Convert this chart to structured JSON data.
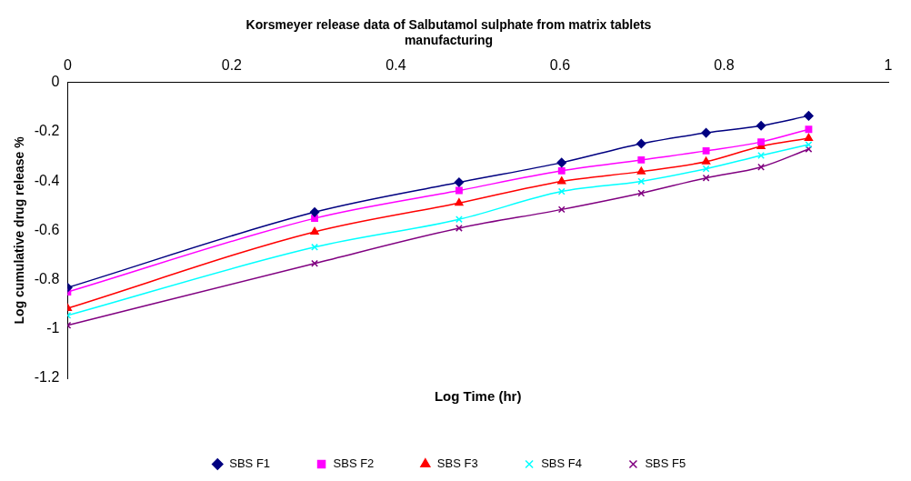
{
  "chart_data": {
    "type": "line",
    "title": [
      "Korsmeyer release data of Salbutamol sulphate from matrix tablets",
      "manufacturing"
    ],
    "xlabel": "Log Time (hr)",
    "ylabel": "Log cumulative drug release %",
    "x": [
      0,
      0.301,
      0.477,
      0.602,
      0.699,
      0.778,
      0.845,
      0.903
    ],
    "xlim": [
      0,
      1
    ],
    "xticks": [
      0,
      0.2,
      0.4,
      0.6,
      0.8,
      1
    ],
    "ylim": [
      -1.2,
      0
    ],
    "yticks": [
      -1.2,
      -1,
      -0.8,
      -0.6,
      -0.4,
      -0.2,
      0
    ],
    "grid": false,
    "legend": "bottom",
    "line_style": "solid",
    "series": [
      {
        "name": "SBS F1",
        "color": "#000080",
        "marker": "diamond",
        "values": [
          -0.832,
          -0.526,
          -0.405,
          -0.325,
          -0.248,
          -0.204,
          -0.175,
          -0.135
        ]
      },
      {
        "name": "SBS F2",
        "color": "#ff00ff",
        "marker": "square",
        "values": [
          -0.85,
          -0.551,
          -0.438,
          -0.358,
          -0.314,
          -0.277,
          -0.241,
          -0.19
        ]
      },
      {
        "name": "SBS F3",
        "color": "#ff0000",
        "marker": "triangle",
        "values": [
          -0.916,
          -0.606,
          -0.489,
          -0.401,
          -0.361,
          -0.321,
          -0.259,
          -0.226
        ]
      },
      {
        "name": "SBS F4",
        "color": "#00ffff",
        "marker": "cross",
        "values": [
          -0.945,
          -0.668,
          -0.555,
          -0.442,
          -0.401,
          -0.35,
          -0.296,
          -0.252
        ]
      },
      {
        "name": "SBS F5",
        "color": "#800080",
        "marker": "cross",
        "values": [
          -0.985,
          -0.734,
          -0.591,
          -0.515,
          -0.449,
          -0.387,
          -0.343,
          -0.27
        ]
      }
    ]
  }
}
